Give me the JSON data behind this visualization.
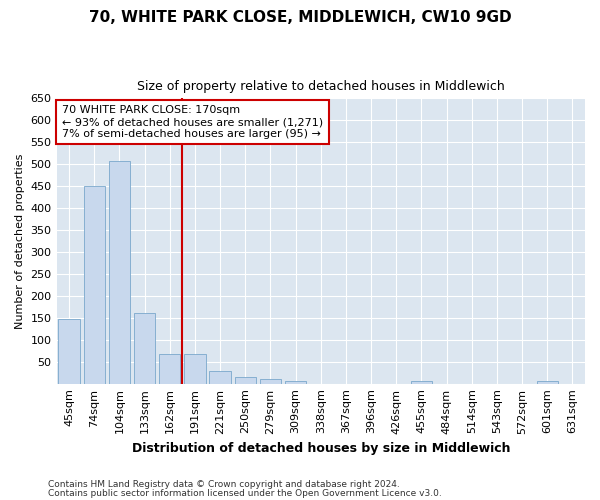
{
  "title": "70, WHITE PARK CLOSE, MIDDLEWICH, CW10 9GD",
  "subtitle": "Size of property relative to detached houses in Middlewich",
  "xlabel": "Distribution of detached houses by size in Middlewich",
  "ylabel": "Number of detached properties",
  "categories": [
    "45sqm",
    "74sqm",
    "104sqm",
    "133sqm",
    "162sqm",
    "191sqm",
    "221sqm",
    "250sqm",
    "279sqm",
    "309sqm",
    "338sqm",
    "367sqm",
    "396sqm",
    "426sqm",
    "455sqm",
    "484sqm",
    "514sqm",
    "543sqm",
    "572sqm",
    "601sqm",
    "631sqm"
  ],
  "values": [
    147,
    450,
    507,
    160,
    67,
    67,
    30,
    15,
    10,
    6,
    0,
    0,
    0,
    0,
    6,
    0,
    0,
    0,
    0,
    6,
    0
  ],
  "bar_color": "#c8d8ed",
  "bar_edge_color": "#7aa8cc",
  "property_line_x": 4.5,
  "annotation_line1": "70 WHITE PARK CLOSE: 170sqm",
  "annotation_line2": "← 93% of detached houses are smaller (1,271)",
  "annotation_line3": "7% of semi-detached houses are larger (95) →",
  "annotation_box_facecolor": "#ffffff",
  "annotation_box_edgecolor": "#cc0000",
  "vline_color": "#cc0000",
  "ylim": [
    0,
    650
  ],
  "yticks": [
    0,
    50,
    100,
    150,
    200,
    250,
    300,
    350,
    400,
    450,
    500,
    550,
    600,
    650
  ],
  "plot_bg_color": "#dce6f0",
  "fig_bg_color": "#ffffff",
  "footnote1": "Contains HM Land Registry data © Crown copyright and database right 2024.",
  "footnote2": "Contains public sector information licensed under the Open Government Licence v3.0.",
  "title_fontsize": 11,
  "subtitle_fontsize": 9,
  "xlabel_fontsize": 9,
  "ylabel_fontsize": 8,
  "tick_fontsize": 8,
  "annotation_fontsize": 8,
  "footnote_fontsize": 6.5
}
